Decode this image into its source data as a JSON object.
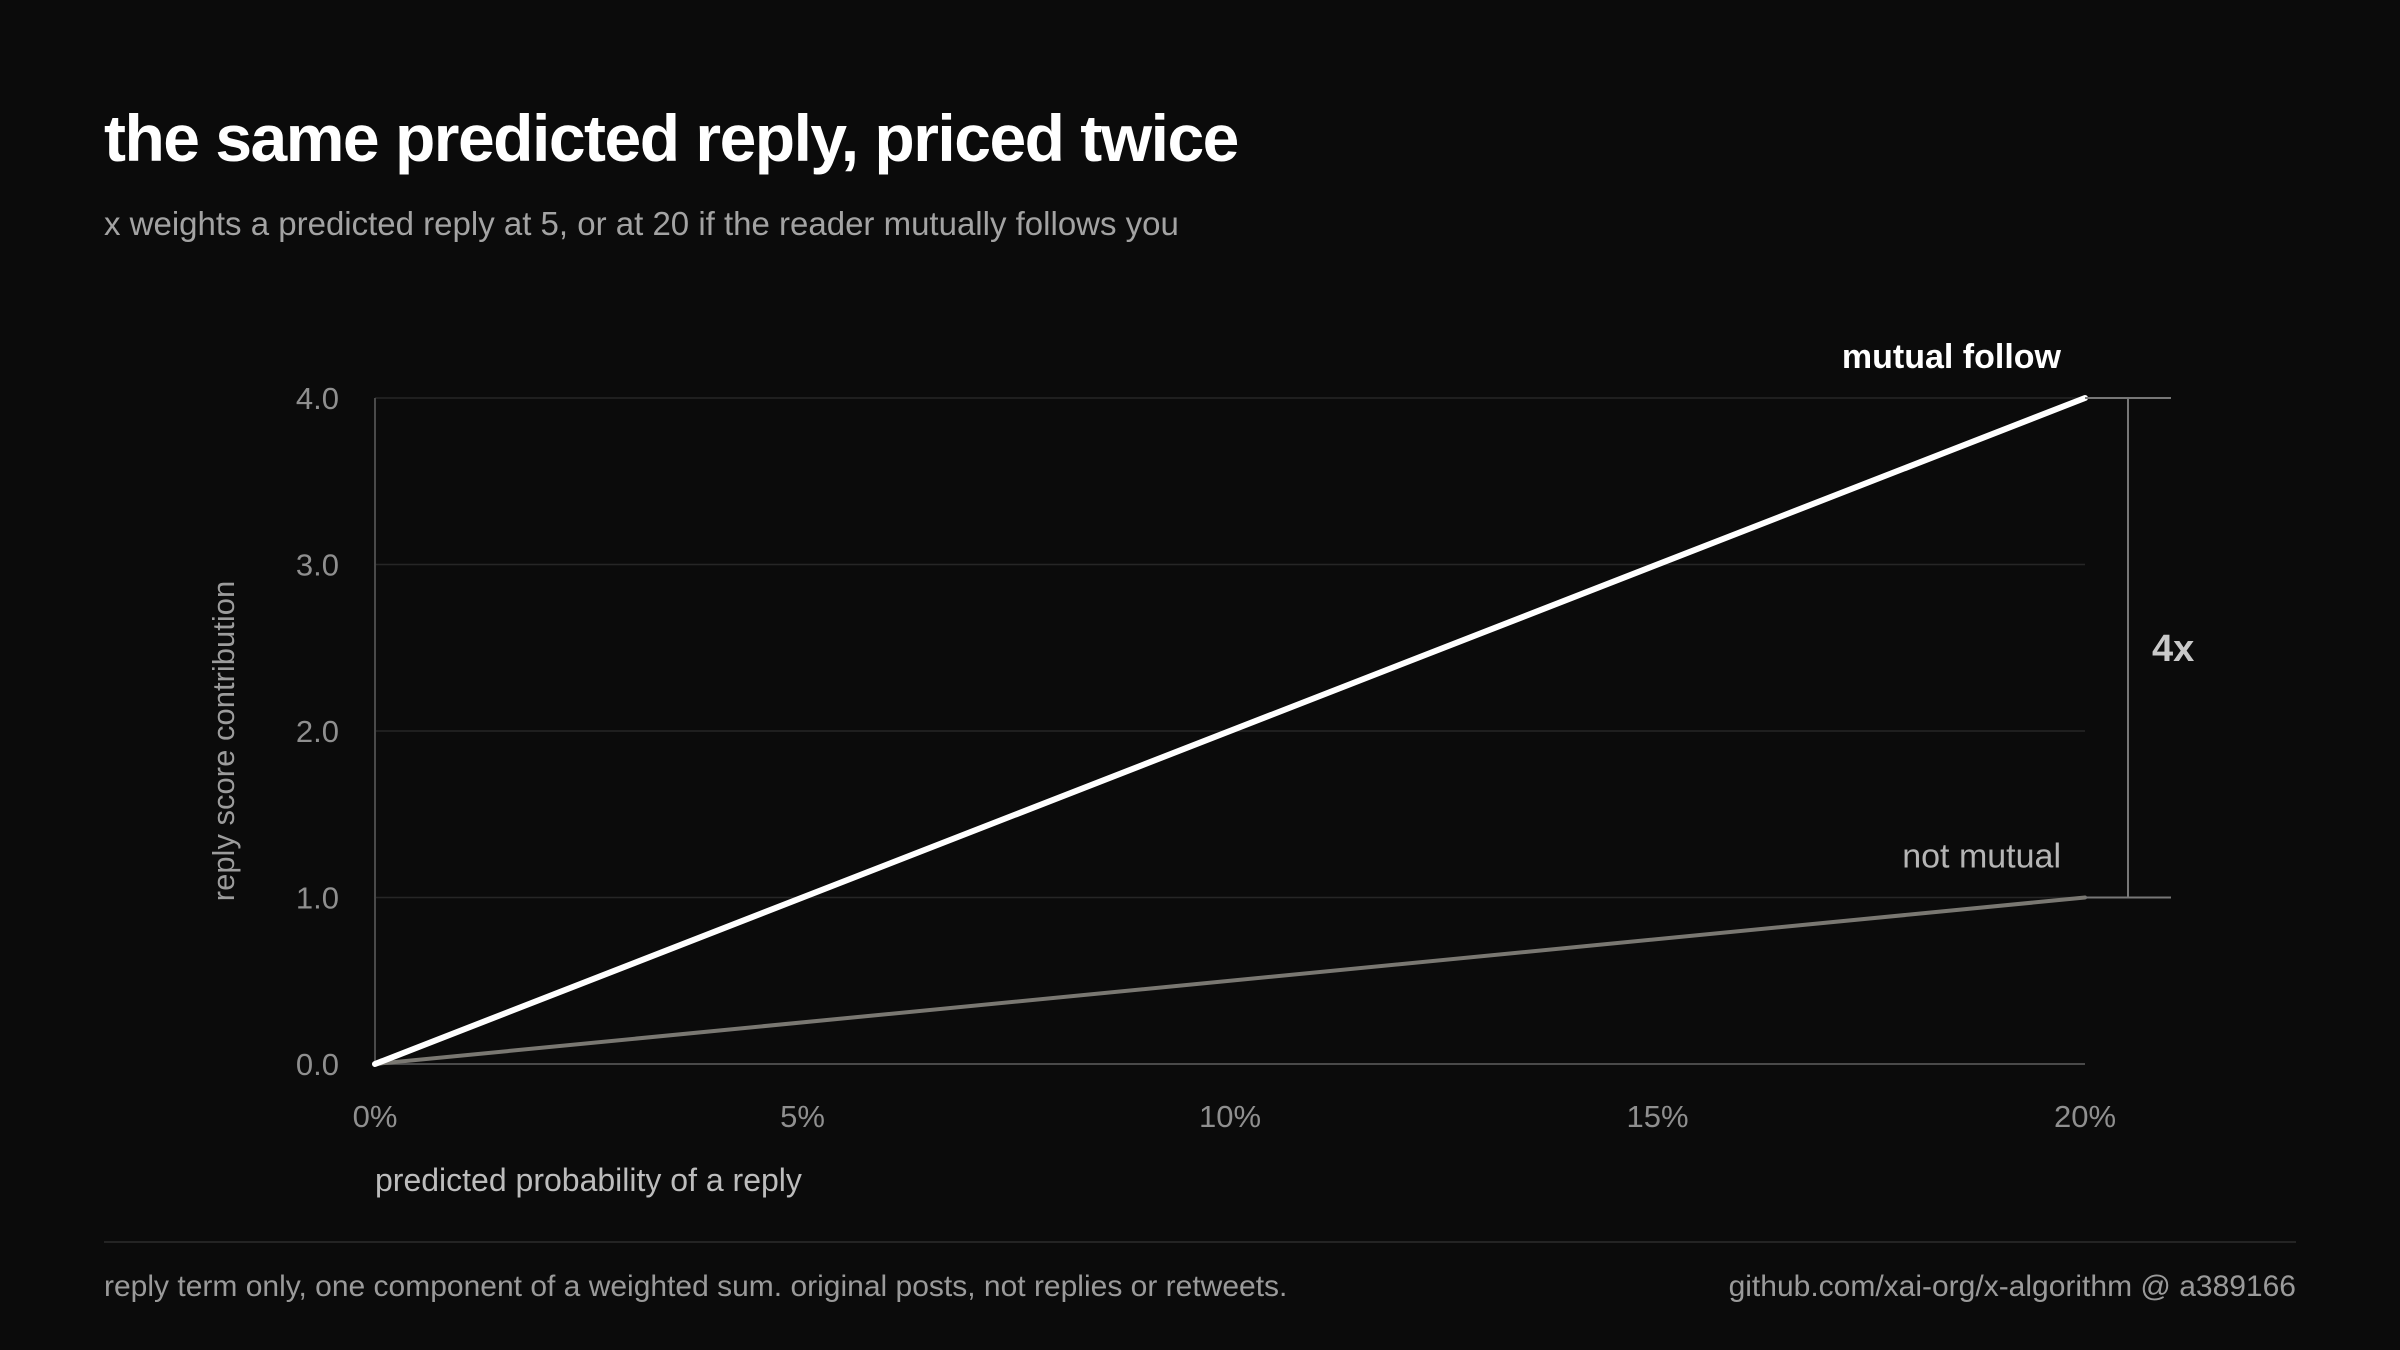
{
  "header": {
    "title": "the same predicted reply, priced twice",
    "subtitle": "x weights a predicted reply at 5, or at 20 if the reader mutually follows you"
  },
  "footer": {
    "note": "reply term only, one component of a weighted sum. original posts, not replies or retweets.",
    "source": "github.com/xai-org/x-algorithm @ a389166"
  },
  "colors": {
    "background": "#0b0b0b",
    "mutual": "#ffffff",
    "not_mutual": "#7a7872",
    "grid": "#262626",
    "axis": "#4a4a4a",
    "tick_text": "#8f8f8f",
    "bracket": "#777777",
    "ratio_text": "#c9c9c9"
  },
  "chart_data": {
    "type": "line",
    "xlabel": "predicted probability of a reply",
    "ylabel": "reply score contribution",
    "xlim": [
      0,
      0.2
    ],
    "ylim": [
      0,
      4.0
    ],
    "x_ticks": [
      {
        "value": 0,
        "label": "0%"
      },
      {
        "value": 0.05,
        "label": "5%"
      },
      {
        "value": 0.1,
        "label": "10%"
      },
      {
        "value": 0.15,
        "label": "15%"
      },
      {
        "value": 0.2,
        "label": "20%"
      }
    ],
    "y_ticks": [
      {
        "value": 0.0,
        "label": "0.0"
      },
      {
        "value": 1.0,
        "label": "1.0"
      },
      {
        "value": 2.0,
        "label": "2.0"
      },
      {
        "value": 3.0,
        "label": "3.0"
      },
      {
        "value": 4.0,
        "label": "4.0"
      }
    ],
    "grid": true,
    "series": [
      {
        "name": "mutual follow",
        "x": [
          0,
          0.2
        ],
        "y": [
          0,
          4.0
        ],
        "label_style": "bold"
      },
      {
        "name": "not mutual",
        "x": [
          0,
          0.2
        ],
        "y": [
          0,
          1.0
        ],
        "label_style": "regular"
      }
    ],
    "annotation": {
      "label": "4x",
      "from_y": 1.0,
      "to_y": 4.0,
      "at_x": 0.2
    }
  }
}
